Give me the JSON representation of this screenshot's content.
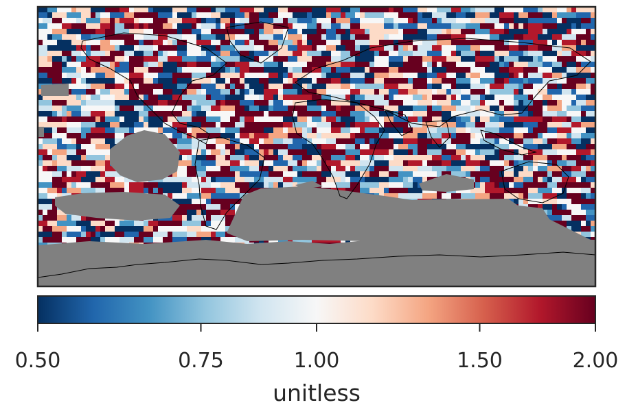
{
  "chart_data": {
    "type": "heatmap",
    "title": "",
    "map": {
      "projection": "plate-carree",
      "coastlines": true,
      "missing_color": "#808080",
      "note_colors": "diverging RdBu_r palette, grey = no data"
    },
    "colorbar": {
      "label": "unitless",
      "scale": "log",
      "range": [
        0.5,
        2.0
      ],
      "ticks": [
        0.5,
        0.75,
        1.0,
        1.5,
        2.0
      ],
      "tick_labels": [
        "0.50",
        "0.75",
        "1.00",
        "1.50",
        "2.00"
      ],
      "colormap": [
        "#053061",
        "#2166ac",
        "#4393c3",
        "#92c5de",
        "#d1e5f0",
        "#f7f7f7",
        "#fddbc7",
        "#f4a582",
        "#d6604d",
        "#b2182b",
        "#67001f"
      ]
    }
  }
}
